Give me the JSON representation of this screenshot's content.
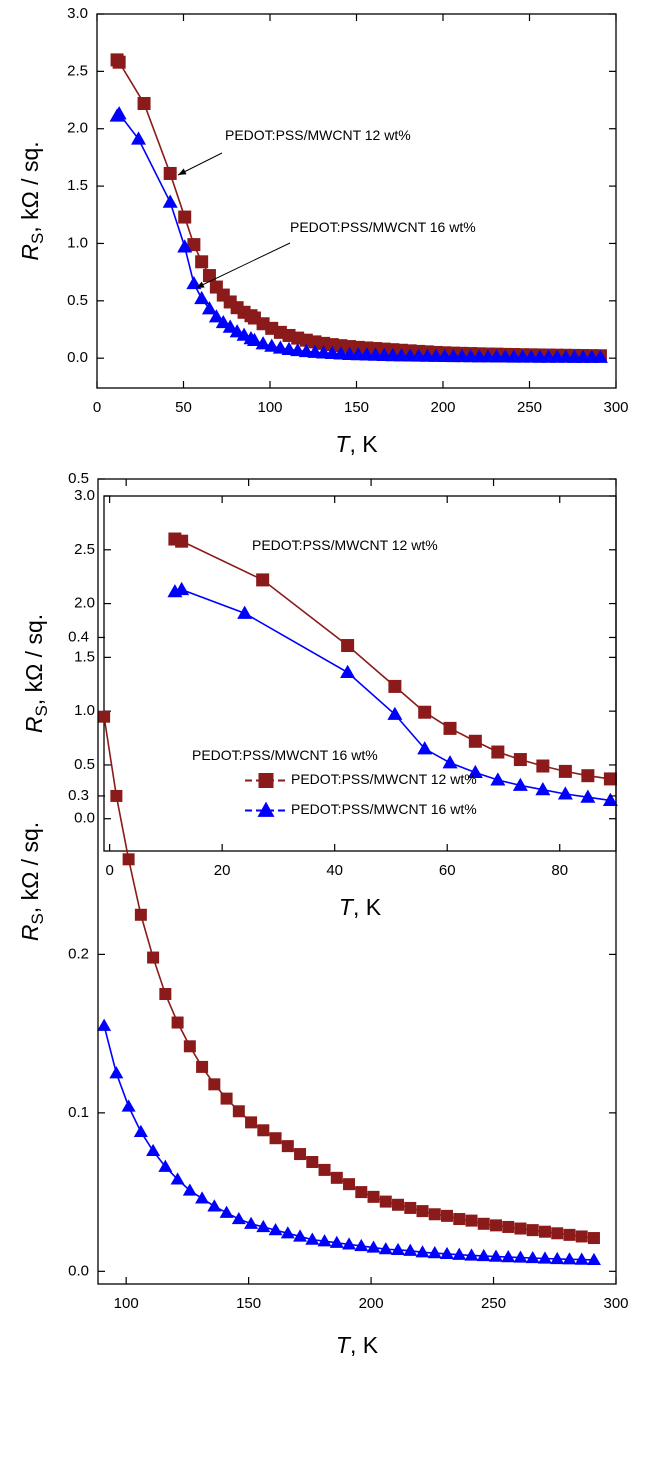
{
  "chart_data": [
    {
      "type": "line",
      "xlabel": [
        "T",
        ", K"
      ],
      "ylabel": [
        "R",
        "S",
        ", kΩ / sq."
      ],
      "xlim": [
        0,
        300
      ],
      "ylim": [
        -0.26,
        3.0
      ],
      "xticks": [
        0,
        50,
        100,
        150,
        200,
        250,
        300
      ],
      "yticks": [
        {
          "value": 0,
          "label": "0.0"
        },
        0.5,
        {
          "value": 1,
          "label": "1.0"
        },
        1.5,
        {
          "value": 2,
          "label": "2.0"
        },
        2.5,
        {
          "value": 3,
          "label": "3.0"
        }
      ],
      "series_labels": "inline",
      "series": [
        {
          "name": "PEDOT:PSS/MWCNT 12 wt%",
          "color": "#8b1a1a",
          "marker": "square",
          "x": [
            11.6,
            12.8,
            27.2,
            42.3,
            50.7,
            56,
            60.5,
            65,
            69,
            73,
            77,
            81,
            85,
            89,
            91,
            96,
            101,
            106,
            111,
            116,
            121,
            126,
            131,
            136,
            141,
            146,
            151,
            156,
            161,
            166,
            171,
            176,
            181,
            186,
            191,
            196,
            201,
            206,
            211,
            216,
            221,
            226,
            231,
            236,
            241,
            246,
            251,
            256,
            261,
            266,
            271,
            276,
            281,
            286,
            291
          ],
          "values": [
            2.6,
            2.58,
            2.22,
            1.61,
            1.23,
            0.99,
            0.84,
            0.72,
            0.62,
            0.55,
            0.49,
            0.44,
            0.4,
            0.37,
            0.35,
            0.3,
            0.26,
            0.225,
            0.198,
            0.175,
            0.157,
            0.142,
            0.129,
            0.118,
            0.109,
            0.101,
            0.094,
            0.089,
            0.084,
            0.079,
            0.074,
            0.069,
            0.064,
            0.059,
            0.055,
            0.05,
            0.047,
            0.044,
            0.042,
            0.04,
            0.038,
            0.036,
            0.035,
            0.033,
            0.032,
            0.03,
            0.029,
            0.028,
            0.027,
            0.026,
            0.025,
            0.024,
            0.023,
            0.022,
            0.021
          ]
        },
        {
          "name": "PEDOT:PSS/MWCNT 16 wt%",
          "color": "#0000ff",
          "marker": "triangle",
          "x": [
            11.6,
            12.8,
            24,
            42.3,
            50.7,
            56,
            60.5,
            65,
            69,
            73,
            77,
            81,
            85,
            89,
            91,
            96,
            101,
            106,
            111,
            116,
            121,
            126,
            131,
            136,
            141,
            146,
            151,
            156,
            161,
            166,
            171,
            176,
            181,
            186,
            191,
            196,
            201,
            206,
            211,
            216,
            221,
            226,
            231,
            236,
            241,
            246,
            251,
            256,
            261,
            266,
            271,
            276,
            281,
            286,
            291
          ],
          "values": [
            2.11,
            2.13,
            1.91,
            1.36,
            0.97,
            0.65,
            0.52,
            0.43,
            0.36,
            0.31,
            0.27,
            0.23,
            0.2,
            0.17,
            0.155,
            0.125,
            0.104,
            0.088,
            0.076,
            0.066,
            0.058,
            0.051,
            0.046,
            0.041,
            0.037,
            0.033,
            0.03,
            0.028,
            0.026,
            0.024,
            0.022,
            0.02,
            0.019,
            0.018,
            0.017,
            0.016,
            0.015,
            0.014,
            0.0135,
            0.013,
            0.012,
            0.0115,
            0.011,
            0.0105,
            0.01,
            0.0097,
            0.0093,
            0.009,
            0.0087,
            0.0084,
            0.0081,
            0.0078,
            0.0076,
            0.0074,
            0.0072
          ]
        }
      ]
    },
    {
      "type": "line",
      "xlabel": [
        "T",
        ", K"
      ],
      "ylabel": [
        "R",
        "S",
        ", kΩ / sq."
      ],
      "xlim": [
        -1,
        90
      ],
      "ylim": [
        -0.3,
        3.0
      ],
      "xticks": [
        0,
        20,
        40,
        60,
        80
      ],
      "yticks": [
        {
          "value": 0,
          "label": "0.0"
        },
        0.5,
        {
          "value": 1,
          "label": "1.0"
        },
        1.5,
        {
          "value": 2,
          "label": "2.0"
        },
        2.5,
        {
          "value": 3,
          "label": "3.0"
        }
      ],
      "series_labels": "inline",
      "series": [
        {
          "name": "PEDOT:PSS/MWCNT 12 wt%",
          "color": "#8b1a1a",
          "marker": "square",
          "x": [
            11.6,
            12.8,
            27.2,
            42.3,
            50.7,
            56,
            60.5,
            65,
            69,
            73,
            77,
            81,
            85,
            89
          ],
          "values": [
            2.6,
            2.58,
            2.22,
            1.61,
            1.23,
            0.99,
            0.84,
            0.72,
            0.62,
            0.55,
            0.49,
            0.44,
            0.4,
            0.37
          ]
        },
        {
          "name": "PEDOT:PSS/MWCNT 16 wt%",
          "color": "#0000ff",
          "marker": "triangle",
          "x": [
            11.6,
            12.8,
            24,
            42.3,
            50.7,
            56,
            60.5,
            65,
            69,
            73,
            77,
            81,
            85,
            89
          ],
          "values": [
            2.11,
            2.13,
            1.91,
            1.36,
            0.97,
            0.65,
            0.52,
            0.43,
            0.36,
            0.31,
            0.27,
            0.23,
            0.2,
            0.17
          ]
        }
      ]
    },
    {
      "type": "line",
      "xlabel": [
        "T",
        ", K"
      ],
      "ylabel": [
        "R",
        "S",
        ", kΩ / sq."
      ],
      "xlim": [
        88.5,
        300
      ],
      "ylim": [
        -0.008,
        0.5
      ],
      "xticks": [
        100,
        150,
        200,
        250,
        300
      ],
      "yticks": [
        {
          "value": 0,
          "label": "0.0"
        },
        0.1,
        0.2,
        0.3,
        0.4,
        0.5
      ],
      "legend": "center right",
      "series": [
        {
          "name": "PEDOT:PSS/MWCNT 12 wt%",
          "color": "#8b1a1a",
          "marker": "square",
          "x": [
            91,
            96,
            101,
            106,
            111,
            116,
            121,
            126,
            131,
            136,
            141,
            146,
            151,
            156,
            161,
            166,
            171,
            176,
            181,
            186,
            191,
            196,
            201,
            206,
            211,
            216,
            221,
            226,
            231,
            236,
            241,
            246,
            251,
            256,
            261,
            266,
            271,
            276,
            281,
            286,
            291
          ],
          "values": [
            0.35,
            0.3,
            0.26,
            0.225,
            0.198,
            0.175,
            0.157,
            0.142,
            0.129,
            0.118,
            0.109,
            0.101,
            0.094,
            0.089,
            0.084,
            0.079,
            0.074,
            0.069,
            0.064,
            0.059,
            0.055,
            0.05,
            0.047,
            0.044,
            0.042,
            0.04,
            0.038,
            0.036,
            0.035,
            0.033,
            0.032,
            0.03,
            0.029,
            0.028,
            0.027,
            0.026,
            0.025,
            0.024,
            0.023,
            0.022,
            0.021
          ]
        },
        {
          "name": "PEDOT:PSS/MWCNT 16 wt%",
          "color": "#0000ff",
          "marker": "triangle",
          "x": [
            91,
            96,
            101,
            106,
            111,
            116,
            121,
            126,
            131,
            136,
            141,
            146,
            151,
            156,
            161,
            166,
            171,
            176,
            181,
            186,
            191,
            196,
            201,
            206,
            211,
            216,
            221,
            226,
            231,
            236,
            241,
            246,
            251,
            256,
            261,
            266,
            271,
            276,
            281,
            286,
            291
          ],
          "values": [
            0.155,
            0.125,
            0.104,
            0.088,
            0.076,
            0.066,
            0.058,
            0.051,
            0.046,
            0.041,
            0.037,
            0.033,
            0.03,
            0.028,
            0.026,
            0.024,
            0.022,
            0.02,
            0.019,
            0.018,
            0.017,
            0.016,
            0.015,
            0.014,
            0.0135,
            0.013,
            0.012,
            0.0115,
            0.011,
            0.0105,
            0.01,
            0.0097,
            0.0093,
            0.009,
            0.0087,
            0.0084,
            0.0081,
            0.0078,
            0.0076,
            0.0074,
            0.0072
          ]
        }
      ]
    }
  ]
}
